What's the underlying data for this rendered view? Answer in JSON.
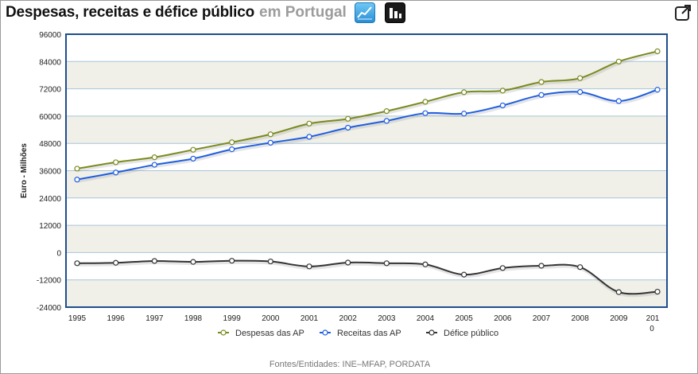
{
  "header": {
    "title": "Despesas, receitas e défice público",
    "region": "em Portugal",
    "line_chart_icon": "line-chart-icon",
    "bar_chart_icon": "bar-chart-icon",
    "expand_icon": "expand-icon"
  },
  "chart_data": {
    "type": "line",
    "title": "Despesas, receitas e défice público em Portugal",
    "ylabel": "Euro - Milhões",
    "xlabel": "",
    "ylim": [
      -24000,
      96000
    ],
    "yticks": [
      96000,
      84000,
      72000,
      60000,
      48000,
      36000,
      24000,
      12000,
      0,
      -12000,
      -24000
    ],
    "ytick_labels": [
      "96000",
      "84000",
      "72000",
      "60000",
      "48000",
      "36000",
      "24000",
      "12000",
      "0",
      "-12000",
      "-24000"
    ],
    "categories": [
      "1995",
      "1996",
      "1997",
      "1998",
      "1999",
      "2000",
      "2001",
      "2002",
      "2003",
      "2004",
      "2005",
      "2006",
      "2007",
      "2008",
      "2009",
      "2010"
    ],
    "x_label_last_wrapped": [
      "201",
      "0"
    ],
    "series": [
      {
        "name": "Despesas das AP",
        "color": "#7a8a1e",
        "values": [
          36900,
          39700,
          41900,
          45200,
          48500,
          52000,
          56700,
          58800,
          62200,
          66300,
          70500,
          71200,
          75000,
          76700,
          84000,
          88500
        ]
      },
      {
        "name": "Receitas das AP",
        "color": "#1f5ee0",
        "values": [
          32100,
          35200,
          38600,
          41300,
          45400,
          48300,
          50900,
          54900,
          57900,
          61300,
          61100,
          64700,
          69300,
          70600,
          66600,
          71600
        ]
      },
      {
        "name": "Défice público",
        "color": "#333333",
        "values": [
          -4700,
          -4500,
          -3700,
          -4100,
          -3600,
          -3900,
          -6100,
          -4400,
          -4700,
          -5200,
          -9700,
          -6800,
          -5800,
          -6400,
          -17400,
          -17200
        ]
      }
    ],
    "legend_position": "bottom",
    "grid": true
  },
  "footer": {
    "source": "Fontes/Entidades: INE–MFAP, PORDATA"
  }
}
